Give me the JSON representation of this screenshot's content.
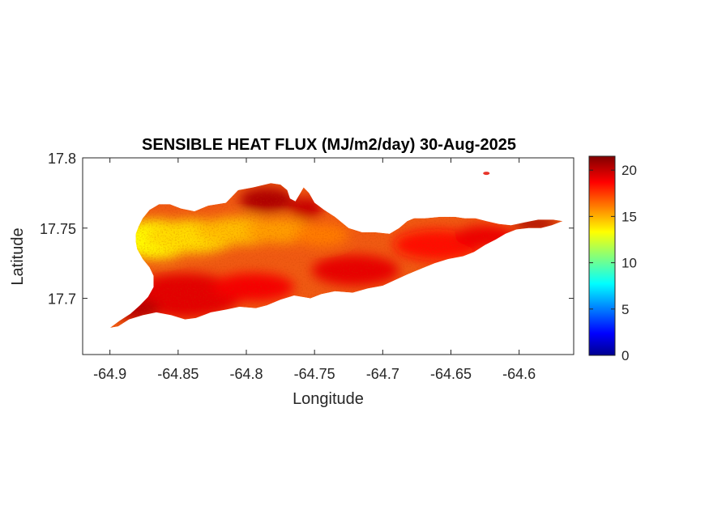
{
  "chart_data": {
    "type": "heatmap",
    "title": "SENSIBLE HEAT FLUX (MJ/m2/day) 30-Aug-2025",
    "xlabel": "Longitude",
    "ylabel": "Latitude",
    "xlim": [
      -64.92,
      -64.56
    ],
    "ylim": [
      17.66,
      17.8
    ],
    "x_ticks": [
      -64.9,
      -64.85,
      -64.8,
      -64.75,
      -64.7,
      -64.65,
      -64.6
    ],
    "x_tick_labels": [
      "-64.9",
      "-64.85",
      "-64.8",
      "-64.75",
      "-64.7",
      "-64.65",
      "-64.6"
    ],
    "y_ticks": [
      17.7,
      17.75,
      17.8
    ],
    "y_tick_labels": [
      "17.7",
      "17.75",
      "17.8"
    ],
    "colorbar": {
      "colormap": "jet",
      "range": [
        0,
        21.5
      ],
      "ticks": [
        0,
        5,
        10,
        15,
        20
      ],
      "tick_labels": [
        "0",
        "5",
        "10",
        "15",
        "20"
      ]
    },
    "grid": false,
    "island_outline": [
      [
        -64.9,
        17.679
      ],
      [
        -64.893,
        17.684
      ],
      [
        -64.885,
        17.689
      ],
      [
        -64.878,
        17.695
      ],
      [
        -64.872,
        17.701
      ],
      [
        -64.868,
        17.708
      ],
      [
        -64.868,
        17.716
      ],
      [
        -64.871,
        17.722
      ],
      [
        -64.876,
        17.728
      ],
      [
        -64.88,
        17.735
      ],
      [
        -64.881,
        17.74
      ],
      [
        -64.881,
        17.746
      ],
      [
        -64.879,
        17.751
      ],
      [
        -64.876,
        17.757
      ],
      [
        -64.871,
        17.763
      ],
      [
        -64.864,
        17.767
      ],
      [
        -64.856,
        17.767
      ],
      [
        -64.848,
        17.764
      ],
      [
        -64.838,
        17.762
      ],
      [
        -64.828,
        17.766
      ],
      [
        -64.815,
        17.768
      ],
      [
        -64.806,
        17.777
      ],
      [
        -64.795,
        17.779
      ],
      [
        -64.782,
        17.782
      ],
      [
        -64.775,
        17.781
      ],
      [
        -64.77,
        17.777
      ],
      [
        -64.768,
        17.771
      ],
      [
        -64.764,
        17.769
      ],
      [
        -64.761,
        17.774
      ],
      [
        -64.758,
        17.779
      ],
      [
        -64.754,
        17.775
      ],
      [
        -64.75,
        17.768
      ],
      [
        -64.743,
        17.763
      ],
      [
        -64.735,
        17.758
      ],
      [
        -64.725,
        17.75
      ],
      [
        -64.715,
        17.747
      ],
      [
        -64.705,
        17.747
      ],
      [
        -64.695,
        17.746
      ],
      [
        -64.688,
        17.75
      ],
      [
        -64.682,
        17.755
      ],
      [
        -64.677,
        17.757
      ],
      [
        -64.669,
        17.757
      ],
      [
        -64.658,
        17.758
      ],
      [
        -64.647,
        17.758
      ],
      [
        -64.64,
        17.757
      ],
      [
        -64.632,
        17.757
      ],
      [
        -64.624,
        17.755
      ],
      [
        -64.615,
        17.753
      ],
      [
        -64.606,
        17.752
      ],
      [
        -64.596,
        17.754
      ],
      [
        -64.586,
        17.756
      ],
      [
        -64.575,
        17.756
      ],
      [
        -64.568,
        17.755
      ],
      [
        -64.576,
        17.752
      ],
      [
        -64.584,
        17.75
      ],
      [
        -64.593,
        17.75
      ],
      [
        -64.602,
        17.749
      ],
      [
        -64.61,
        17.746
      ],
      [
        -64.617,
        17.742
      ],
      [
        -64.625,
        17.738
      ],
      [
        -64.633,
        17.733
      ],
      [
        -64.641,
        17.73
      ],
      [
        -64.652,
        17.728
      ],
      [
        -64.662,
        17.725
      ],
      [
        -64.672,
        17.721
      ],
      [
        -64.682,
        17.717
      ],
      [
        -64.691,
        17.713
      ],
      [
        -64.7,
        17.709
      ],
      [
        -64.711,
        17.707
      ],
      [
        -64.722,
        17.704
      ],
      [
        -64.735,
        17.705
      ],
      [
        -64.745,
        17.703
      ],
      [
        -64.753,
        17.7
      ],
      [
        -64.765,
        17.702
      ],
      [
        -64.775,
        17.699
      ],
      [
        -64.785,
        17.695
      ],
      [
        -64.793,
        17.693
      ],
      [
        -64.805,
        17.694
      ],
      [
        -64.815,
        17.692
      ],
      [
        -64.826,
        17.69
      ],
      [
        -64.837,
        17.686
      ],
      [
        -64.845,
        17.685
      ],
      [
        -64.855,
        17.688
      ],
      [
        -64.866,
        17.69
      ],
      [
        -64.876,
        17.688
      ],
      [
        -64.886,
        17.685
      ],
      [
        -64.894,
        17.68
      ]
    ],
    "islet": {
      "lon": -64.624,
      "lat": 17.789
    },
    "zones": [
      {
        "lon": -64.866,
        "lat": 17.742,
        "rx": 0.028,
        "ry": 0.014,
        "value": 13.5
      },
      {
        "lon": -64.84,
        "lat": 17.744,
        "rx": 0.034,
        "ry": 0.012,
        "value": 14.2
      },
      {
        "lon": -64.805,
        "lat": 17.748,
        "rx": 0.032,
        "ry": 0.01,
        "value": 14.8
      },
      {
        "lon": -64.775,
        "lat": 17.748,
        "rx": 0.026,
        "ry": 0.009,
        "value": 15.5
      },
      {
        "lon": -64.745,
        "lat": 17.745,
        "rx": 0.02,
        "ry": 0.008,
        "value": 16.2
      },
      {
        "lon": -64.785,
        "lat": 17.77,
        "rx": 0.02,
        "ry": 0.009,
        "value": 20.5
      },
      {
        "lon": -64.756,
        "lat": 17.764,
        "rx": 0.012,
        "ry": 0.008,
        "value": 20.0
      },
      {
        "lon": -64.845,
        "lat": 17.702,
        "rx": 0.042,
        "ry": 0.016,
        "value": 19.4
      },
      {
        "lon": -64.88,
        "lat": 17.692,
        "rx": 0.016,
        "ry": 0.008,
        "value": 20.3
      },
      {
        "lon": -64.795,
        "lat": 17.708,
        "rx": 0.03,
        "ry": 0.01,
        "value": 19.0
      },
      {
        "lon": -64.72,
        "lat": 17.72,
        "rx": 0.032,
        "ry": 0.011,
        "value": 19.3
      },
      {
        "lon": -64.66,
        "lat": 17.738,
        "rx": 0.032,
        "ry": 0.011,
        "value": 18.6
      },
      {
        "lon": -64.625,
        "lat": 17.744,
        "rx": 0.022,
        "ry": 0.008,
        "value": 19.2
      },
      {
        "lon": -64.588,
        "lat": 17.753,
        "rx": 0.016,
        "ry": 0.004,
        "value": 20.8
      }
    ]
  }
}
